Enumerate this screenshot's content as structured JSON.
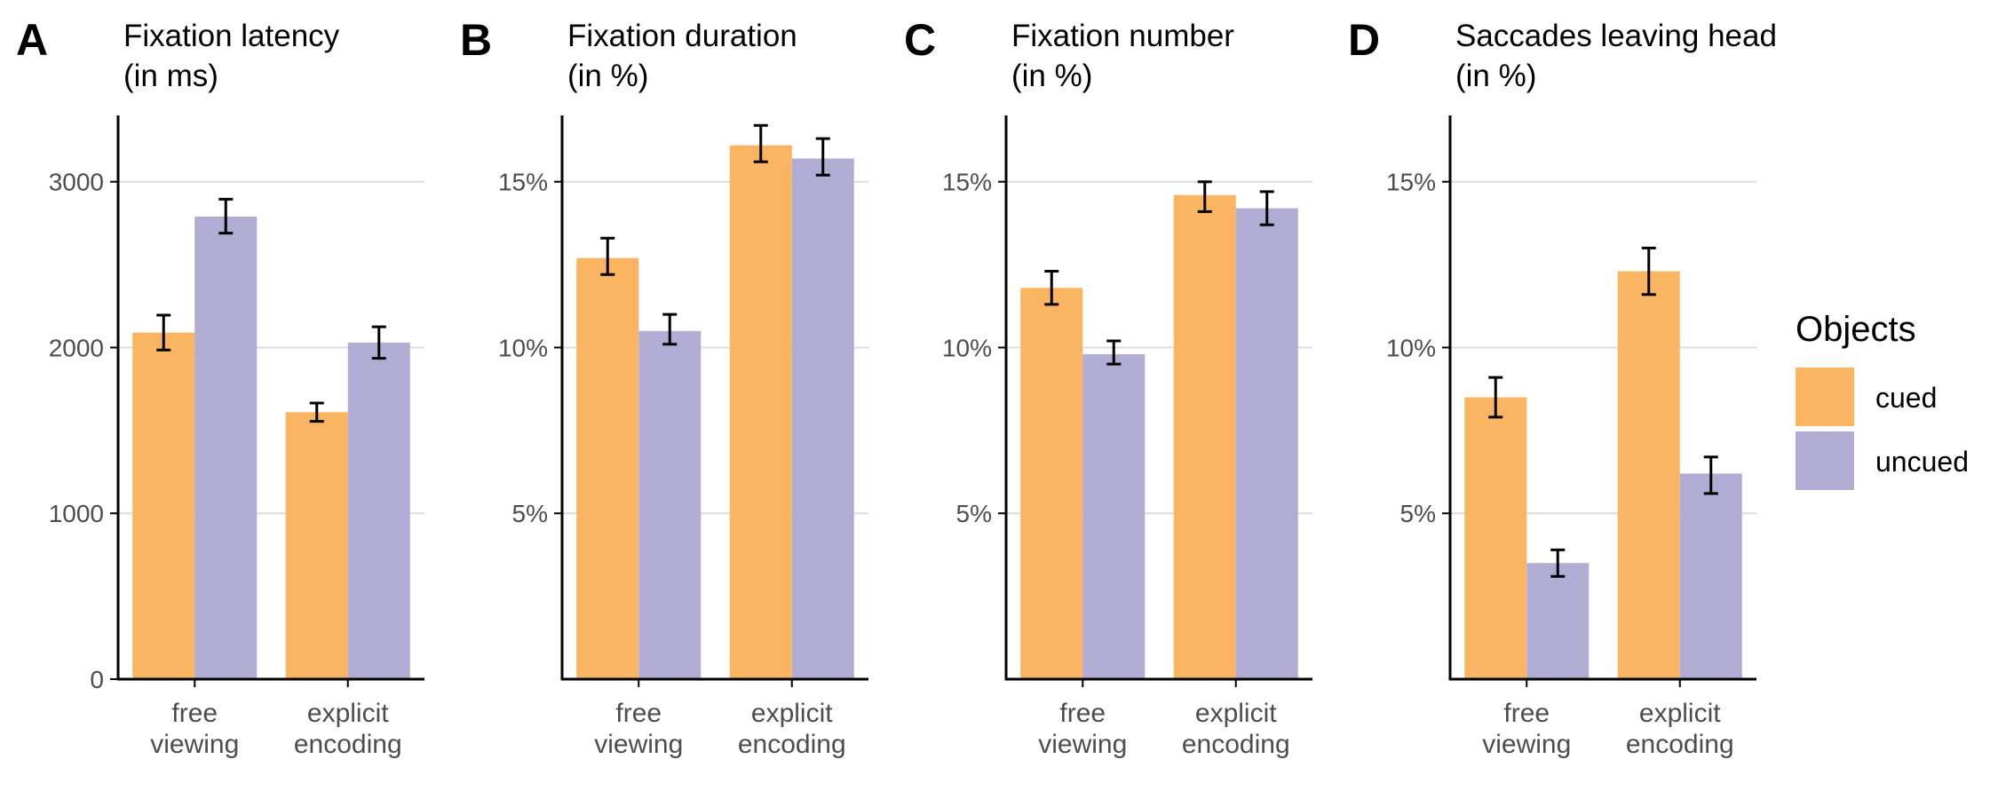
{
  "legend": {
    "title": "Objects",
    "entries": [
      {
        "label": "cued",
        "color": "#FBB461"
      },
      {
        "label": "uncued",
        "color": "#B1ACD3"
      }
    ]
  },
  "style": {
    "axis_color": "#000000",
    "grid_color": "#DCDCDC",
    "tick_text_color": "#4D4D4D",
    "title_color": "#000000"
  },
  "chart_data": [
    {
      "type": "bar",
      "panel_label": "A",
      "title": [
        "Fixation latency",
        "(in ms)"
      ],
      "categories": [
        [
          "free",
          "viewing"
        ],
        [
          "explicit",
          "encoding"
        ]
      ],
      "ylim": [
        0,
        3400
      ],
      "yticks": [
        0,
        1000,
        2000,
        3000
      ],
      "ytick_labels": [
        "0",
        "1000",
        "2000",
        "3000"
      ],
      "grid": true,
      "series": [
        {
          "name": "cued",
          "values": [
            2090,
            1610
          ],
          "err": [
            [
              1985,
              2195
            ],
            [
              1555,
              1665
            ]
          ]
        },
        {
          "name": "uncued",
          "values": [
            2790,
            2030
          ],
          "err": [
            [
              2690,
              2895
            ],
            [
              1935,
              2125
            ]
          ]
        }
      ]
    },
    {
      "type": "bar",
      "panel_label": "B",
      "title": [
        "Fixation duration",
        "(in %)"
      ],
      "categories": [
        [
          "free",
          "viewing"
        ],
        [
          "explicit",
          "encoding"
        ]
      ],
      "ylim": [
        0,
        17
      ],
      "yticks": [
        5,
        10,
        15
      ],
      "ytick_labels": [
        "5%",
        "10%",
        "15%"
      ],
      "grid": true,
      "series": [
        {
          "name": "cued",
          "values": [
            12.7,
            16.1
          ],
          "err": [
            [
              12.2,
              13.3
            ],
            [
              15.6,
              16.7
            ]
          ]
        },
        {
          "name": "uncued",
          "values": [
            10.5,
            15.7
          ],
          "err": [
            [
              10.1,
              11.0
            ],
            [
              15.2,
              16.3
            ]
          ]
        }
      ]
    },
    {
      "type": "bar",
      "panel_label": "C",
      "title": [
        "Fixation number",
        "(in %)"
      ],
      "categories": [
        [
          "free",
          "viewing"
        ],
        [
          "explicit",
          "encoding"
        ]
      ],
      "ylim": [
        0,
        17
      ],
      "yticks": [
        5,
        10,
        15
      ],
      "ytick_labels": [
        "5%",
        "10%",
        "15%"
      ],
      "grid": true,
      "series": [
        {
          "name": "cued",
          "values": [
            11.8,
            14.6
          ],
          "err": [
            [
              11.3,
              12.3
            ],
            [
              14.1,
              15.0
            ]
          ]
        },
        {
          "name": "uncued",
          "values": [
            9.8,
            14.2
          ],
          "err": [
            [
              9.5,
              10.2
            ],
            [
              13.7,
              14.7
            ]
          ]
        }
      ]
    },
    {
      "type": "bar",
      "panel_label": "D",
      "title": [
        "Saccades leaving head",
        "(in %)"
      ],
      "categories": [
        [
          "free",
          "viewing"
        ],
        [
          "explicit",
          "encoding"
        ]
      ],
      "ylim": [
        0,
        17
      ],
      "yticks": [
        5,
        10,
        15
      ],
      "ytick_labels": [
        "5%",
        "10%",
        "15%"
      ],
      "grid": true,
      "series": [
        {
          "name": "cued",
          "values": [
            8.5,
            12.3
          ],
          "err": [
            [
              7.9,
              9.1
            ],
            [
              11.6,
              13.0
            ]
          ]
        },
        {
          "name": "uncued",
          "values": [
            3.5,
            6.2
          ],
          "err": [
            [
              3.1,
              3.9
            ],
            [
              5.6,
              6.7
            ]
          ]
        }
      ]
    }
  ]
}
